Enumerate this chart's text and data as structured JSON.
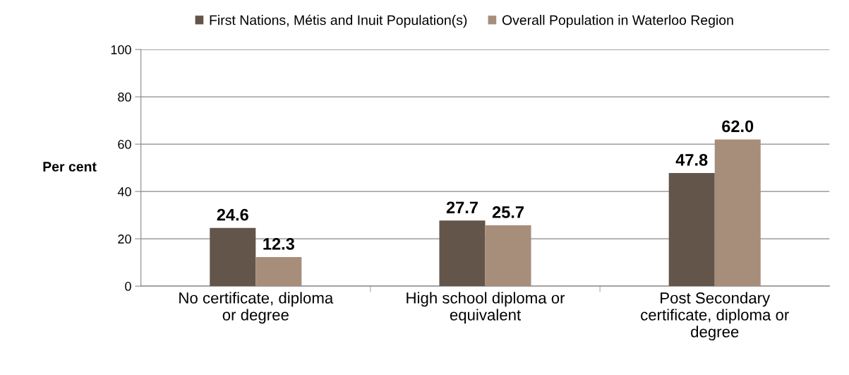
{
  "chart_data": {
    "type": "bar",
    "ylabel": "Per cent",
    "categories": [
      "No certificate, diploma\nor degree",
      "High school diploma or\nequivalent",
      "Post Secondary\ncertificate, diploma or\ndegree"
    ],
    "series": [
      {
        "name": "First Nations, Métis and Inuit Population(s)",
        "color": "#635549",
        "values": [
          24.6,
          27.7,
          47.8
        ],
        "value_labels": [
          "24.6",
          "27.7",
          "47.8"
        ]
      },
      {
        "name": "Overall Population in Waterloo Region",
        "color": "#a78e7b",
        "values": [
          12.3,
          25.7,
          62.0
        ],
        "value_labels": [
          "12.3",
          "25.7",
          "62.0"
        ]
      }
    ],
    "ylim": [
      0,
      100
    ],
    "yticks": [
      0,
      20,
      40,
      60,
      80,
      100
    ],
    "grid": "y",
    "legend": "top"
  }
}
